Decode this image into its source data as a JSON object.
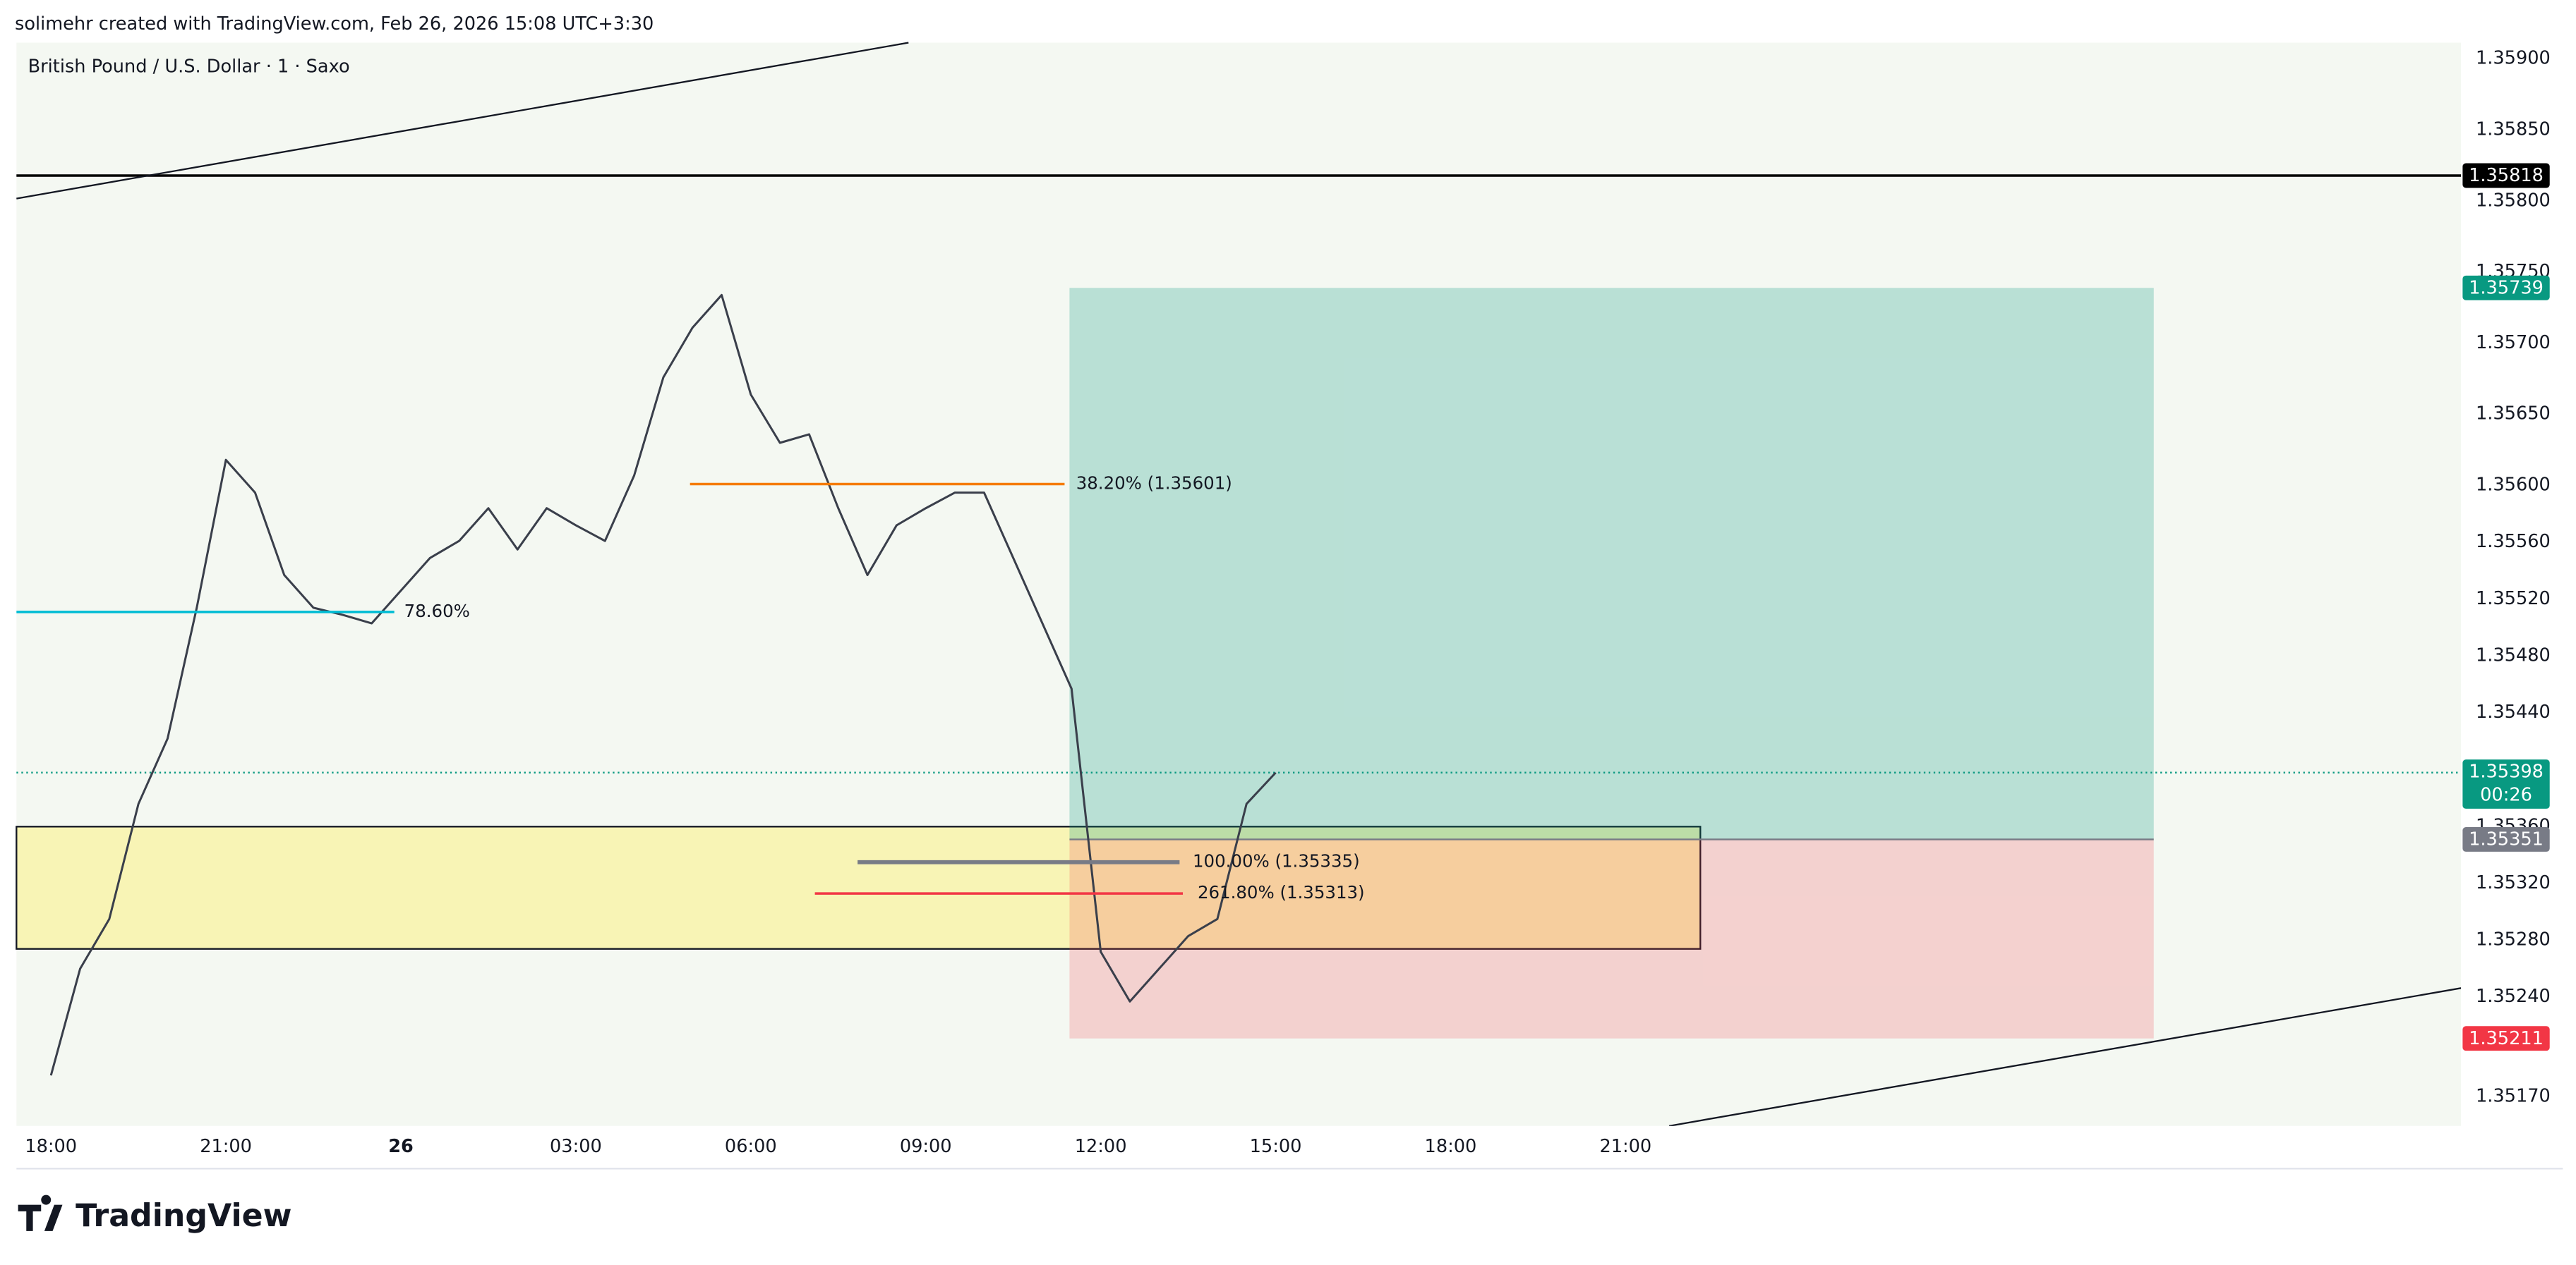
{
  "header": {
    "title": "solimehr created with TradingView.com, Feb 26, 2026 15:08 UTC+3:30"
  },
  "chart_data": {
    "type": "line",
    "title": "British Pound / U.S. Dollar · 1 · Saxo",
    "x": [
      "18:00",
      null,
      null,
      null,
      null,
      null,
      "21:00",
      null,
      null,
      null,
      null,
      null,
      "26",
      null,
      null,
      null,
      null,
      null,
      "03:00",
      null,
      null,
      null,
      null,
      null,
      "06:00",
      null,
      null,
      null,
      null,
      null,
      "09:00",
      null,
      null,
      null,
      null,
      null,
      "12:00",
      null,
      null,
      null,
      null,
      null,
      "15:00",
      null,
      null,
      null,
      null,
      null,
      "18:00",
      null,
      null,
      null,
      null,
      null,
      "21:00"
    ],
    "values": [
      1.35185,
      1.3526,
      1.35295,
      1.35376,
      1.35422,
      1.35514,
      1.35618,
      1.35595,
      1.35537,
      1.35514,
      1.35509,
      1.35503,
      1.35526,
      1.35549,
      1.35561,
      1.35584,
      1.35555,
      1.35584,
      1.35572,
      1.35561,
      1.35607,
      1.35676,
      1.35711,
      1.35734,
      1.35664,
      1.3563,
      1.35636,
      1.35584,
      1.35537,
      1.35572,
      1.35584,
      1.35595,
      1.35595,
      1.35549,
      1.35503,
      1.35457,
      1.35272,
      1.35237,
      1.3526,
      1.35283,
      1.35295,
      1.35376,
      1.35398,
      null,
      null,
      null,
      null,
      null,
      null,
      null,
      null,
      null,
      null,
      null,
      null
    ],
    "color": "#3a3f4b",
    "ylim": [
      1.3515,
      1.3591
    ],
    "yticks": [
      {
        "value": 1.359,
        "label": "1.35900"
      },
      {
        "value": 1.3585,
        "label": "1.35850"
      },
      {
        "value": 1.358,
        "label": "1.35800"
      },
      {
        "value": 1.3575,
        "label": "1.35750"
      },
      {
        "value": 1.357,
        "label": "1.35700"
      },
      {
        "value": 1.3565,
        "label": "1.35650"
      },
      {
        "value": 1.356,
        "label": "1.35600"
      },
      {
        "value": 1.3556,
        "label": "1.35560"
      },
      {
        "value": 1.3552,
        "label": "1.35520"
      },
      {
        "value": 1.3548,
        "label": "1.35480"
      },
      {
        "value": 1.3544,
        "label": "1.35440"
      },
      {
        "value": 1.3536,
        "label": "1.35360"
      },
      {
        "value": 1.3532,
        "label": "1.35320"
      },
      {
        "value": 1.3528,
        "label": "1.35280"
      },
      {
        "value": 1.3524,
        "label": "1.35240"
      },
      {
        "value": 1.3517,
        "label": "1.35170"
      }
    ],
    "current_price": {
      "value": 1.35398,
      "timer": "00:26",
      "color": "#089981"
    },
    "horizontal_line": {
      "value": 1.35818,
      "color": "#000000"
    },
    "position": {
      "target": 1.35739,
      "entry": 1.35351,
      "stop": 1.35211,
      "target_color": "#089981",
      "entry_color": "#787b86",
      "stop_color": "#f23645"
    },
    "zone": {
      "top": 1.3536,
      "bottom": 1.35274
    },
    "fib_levels": [
      {
        "label": "38.20% (1.35601)",
        "value": 1.35601,
        "color": "#f57c00"
      },
      {
        "label": "78.60%",
        "value": 1.35511,
        "color": "#00bcd4"
      },
      {
        "label": "100.00% (1.35335)",
        "value": 1.35335,
        "color": "#787b86"
      },
      {
        "label": "261.80% (1.35313)",
        "value": 1.35313,
        "color": "#f23645"
      }
    ]
  },
  "footer": {
    "logo": "TradingView"
  }
}
